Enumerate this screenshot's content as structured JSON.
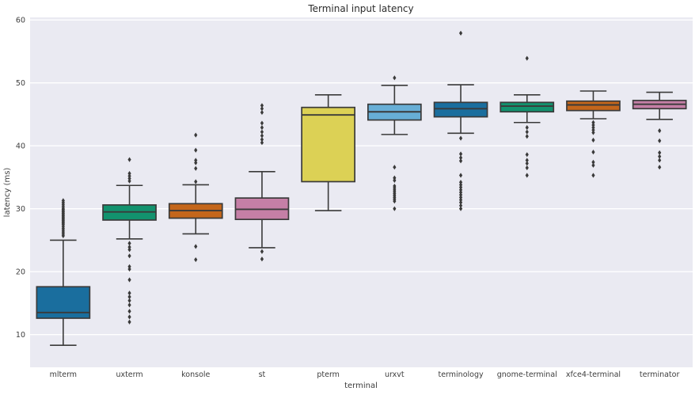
{
  "chart_data": {
    "type": "boxplot",
    "title": "Terminal input latency",
    "xlabel": "terminal",
    "ylabel": "latency (ms)",
    "ylim": [
      4.8,
      60.4
    ],
    "yticks": [
      10,
      20,
      30,
      40,
      50,
      60
    ],
    "grid": {
      "axis": "y",
      "line_color": "#ffffff",
      "background": "#eaeaf2"
    },
    "legend": null,
    "edge_color": "#3a3a3a",
    "flier_color": "#3a3a3a",
    "categories": [
      "mlterm",
      "uxterm",
      "konsole",
      "st",
      "pterm",
      "urxvt",
      "terminology",
      "gnome-terminal",
      "xfce4-terminal",
      "terminator"
    ],
    "boxes": [
      {
        "name": "mlterm",
        "color": "#1a6e9e",
        "whislo": 8.3,
        "q1": 12.6,
        "med": 13.5,
        "q3": 17.6,
        "whishi": 25.0,
        "fliers": [
          25.7,
          26.0,
          26.3,
          26.6,
          26.9,
          27.2,
          27.5,
          27.7,
          27.9,
          28.1,
          28.3,
          28.5,
          28.7,
          28.9,
          29.1,
          29.3,
          29.5,
          29.7,
          29.9,
          30.1,
          30.4,
          30.7,
          31.0,
          31.3
        ]
      },
      {
        "name": "uxterm",
        "color": "#12926e",
        "whislo": 25.2,
        "q1": 28.2,
        "med": 29.5,
        "q3": 30.6,
        "whishi": 33.7,
        "fliers": [
          34.4,
          34.8,
          35.2,
          35.6,
          37.8,
          24.5,
          23.9,
          23.5,
          22.5,
          20.8,
          20.4,
          18.7,
          16.6,
          16.0,
          15.4,
          14.7,
          13.7,
          12.8,
          12.0
        ]
      },
      {
        "name": "konsole",
        "color": "#c4661b",
        "whislo": 26.0,
        "q1": 28.5,
        "med": 29.7,
        "q3": 30.8,
        "whishi": 33.8,
        "fliers": [
          34.3,
          36.4,
          37.3,
          37.7,
          39.3,
          41.7,
          24.0,
          21.9
        ]
      },
      {
        "name": "st",
        "color": "#c57fa6",
        "whislo": 23.8,
        "q1": 28.3,
        "med": 29.9,
        "q3": 31.7,
        "whishi": 35.9,
        "fliers": [
          40.5,
          41.0,
          41.6,
          42.2,
          42.9,
          43.6,
          45.3,
          45.9,
          46.4,
          23.2,
          22.0
        ]
      },
      {
        "name": "pterm",
        "color": "#dcd155",
        "whislo": 29.7,
        "q1": 34.3,
        "med": 44.9,
        "q3": 46.1,
        "whishi": 48.1,
        "fliers": []
      },
      {
        "name": "urxvt",
        "color": "#67aed6",
        "whislo": 41.8,
        "q1": 44.1,
        "med": 45.4,
        "q3": 46.6,
        "whishi": 49.6,
        "fliers": [
          50.8,
          36.6,
          34.9,
          34.5,
          33.6,
          33.3,
          33.0,
          32.7,
          32.4,
          32.1,
          31.8,
          31.5,
          31.2,
          30.0
        ]
      },
      {
        "name": "terminology",
        "color": "#1a6e9e",
        "whislo": 42.0,
        "q1": 44.6,
        "med": 45.9,
        "q3": 46.9,
        "whishi": 49.7,
        "fliers": [
          57.9,
          41.2,
          38.7,
          38.1,
          37.6,
          35.3,
          34.2,
          33.8,
          33.4,
          33.0,
          32.6,
          32.2,
          31.8,
          31.4,
          31.0,
          30.5,
          30.0
        ]
      },
      {
        "name": "gnome-terminal",
        "color": "#12926e",
        "whislo": 43.7,
        "q1": 45.4,
        "med": 46.3,
        "q3": 46.9,
        "whishi": 48.1,
        "fliers": [
          53.9,
          42.9,
          42.2,
          41.5,
          38.6,
          37.7,
          37.2,
          36.5,
          35.3
        ]
      },
      {
        "name": "xfce4-terminal",
        "color": "#c4661b",
        "whislo": 44.3,
        "q1": 45.6,
        "med": 46.5,
        "q3": 47.1,
        "whishi": 48.7,
        "fliers": [
          43.7,
          43.3,
          42.9,
          42.5,
          42.1,
          40.9,
          39.0,
          37.4,
          36.9,
          35.3
        ]
      },
      {
        "name": "terminator",
        "color": "#c57fa6",
        "whislo": 44.2,
        "q1": 45.9,
        "med": 46.6,
        "q3": 47.2,
        "whishi": 48.5,
        "fliers": [
          42.4,
          40.8,
          38.9,
          38.3,
          37.7,
          36.6
        ]
      }
    ]
  }
}
